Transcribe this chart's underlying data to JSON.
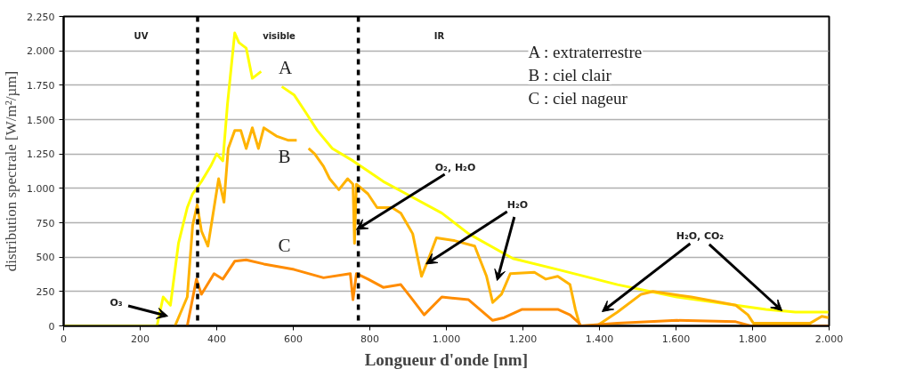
{
  "chart_data": {
    "type": "line",
    "xlabel": "Longueur d'onde [nm]",
    "ylabel": "distribution spectrale [W/m²/µm]",
    "xlim": [
      0,
      2000
    ],
    "ylim": [
      0,
      2250
    ],
    "xticks": [
      0,
      200,
      400,
      600,
      800,
      {
        "value": 1000,
        "label": "1.000"
      },
      {
        "value": 1200,
        "label": "1.200"
      },
      {
        "value": 1400,
        "label": "1.400"
      },
      {
        "value": 1600,
        "label": "1.600"
      },
      {
        "value": 1800,
        "label": "1.800"
      },
      {
        "value": 2000,
        "label": "2.000"
      }
    ],
    "yticks": [
      0,
      250,
      500,
      750,
      {
        "value": 1000,
        "label": "1.000"
      },
      {
        "value": 1250,
        "label": "1.250"
      },
      {
        "value": 1500,
        "label": "1.500"
      },
      {
        "value": 1750,
        "label": "1.750"
      },
      {
        "value": 2000,
        "label": "2.000"
      },
      {
        "value": 2250,
        "label": "2.250"
      }
    ],
    "grid": "y",
    "marker": "none",
    "line_style": "solid",
    "series": [
      {
        "color": "#ffff00",
        "x": [
          0,
          244,
          260,
          279,
          300,
          323,
          337,
          360,
          384,
          400,
          416,
          428,
          447,
          458,
          477,
          493,
          516,
          540,
          570,
          602,
          633,
          663,
          702,
          756,
          788,
          835,
          895,
          988,
          1058,
          1174,
          1291,
          1447,
          1602,
          1756,
          1835,
          1912,
          1998
        ],
        "values": [
          0,
          0,
          210,
          150,
          600,
          860,
          960,
          1050,
          1160,
          1250,
          1200,
          1610,
          2130,
          2060,
          2020,
          1800,
          1850,
          null,
          1740,
          1680,
          1550,
          1420,
          1290,
          1200,
          1140,
          1050,
          960,
          820,
          670,
          490,
          410,
          300,
          210,
          150,
          120,
          100,
          100
        ]
      },
      {
        "color": "#ffb300",
        "x": [
          291,
          323,
          337,
          349,
          360,
          377,
          393,
          405,
          419,
          430,
          447,
          463,
          477,
          493,
          509,
          523,
          556,
          586,
          609,
          625,
          640,
          656,
          679,
          695,
          719,
          742,
          756,
          760,
          765,
          795,
          819,
          858,
          881,
          912,
          935,
          951,
          974,
          1021,
          1074,
          1105,
          1121,
          1144,
          1167,
          1230,
          1260,
          1291,
          1323,
          1337,
          1349,
          1393,
          1447,
          1509,
          1540,
          1640,
          1756,
          1788,
          1802,
          1951,
          1981,
          1998
        ],
        "values": [
          0,
          210,
          730,
          880,
          690,
          580,
          860,
          1070,
          900,
          1290,
          1420,
          1420,
          1290,
          1440,
          1290,
          1440,
          1380,
          1350,
          1350,
          null,
          1290,
          1250,
          1160,
          1070,
          990,
          1070,
          1030,
          600,
          1030,
          960,
          860,
          860,
          820,
          670,
          360,
          470,
          640,
          620,
          580,
          360,
          170,
          230,
          380,
          390,
          340,
          360,
          300,
          120,
          0,
          0,
          100,
          230,
          250,
          210,
          150,
          80,
          20,
          20,
          70,
          60
        ]
      },
      {
        "color": "#ff8c00",
        "x": [
          323,
          347,
          360,
          393,
          416,
          447,
          477,
          523,
          602,
          679,
          749,
          756,
          765,
          795,
          835,
          881,
          912,
          942,
          988,
          1058,
          1121,
          1151,
          1198,
          1291,
          1323,
          1347,
          1351,
          1447,
          1602,
          1756,
          1795,
          1998
        ],
        "values": [
          0,
          340,
          230,
          380,
          340,
          470,
          480,
          450,
          410,
          350,
          380,
          190,
          380,
          340,
          280,
          300,
          190,
          80,
          210,
          190,
          40,
          60,
          120,
          120,
          80,
          20,
          0,
          20,
          40,
          30,
          0,
          0
        ]
      }
    ],
    "ref_lines": [
      {
        "axis": "x",
        "value": 350,
        "line_style": "dashed",
        "color": "#000000"
      },
      {
        "axis": "x",
        "value": 770,
        "line_style": "dashed",
        "color": "#000000"
      }
    ],
    "annotations": [
      "UV",
      "visible",
      "IR",
      "A",
      "B",
      "C",
      "A : extraterrestre",
      "B : ciel clair",
      "C : ciel nageur",
      "O₃",
      {
        "text": "O₂, H₂O",
        "x": 765,
        "y": 700
      },
      {
        "text": "H₂O",
        "x": 947,
        "y": 450
      },
      {
        "text": "H₂O, CO₂",
        "x": 1877,
        "y": 110
      }
    ]
  }
}
